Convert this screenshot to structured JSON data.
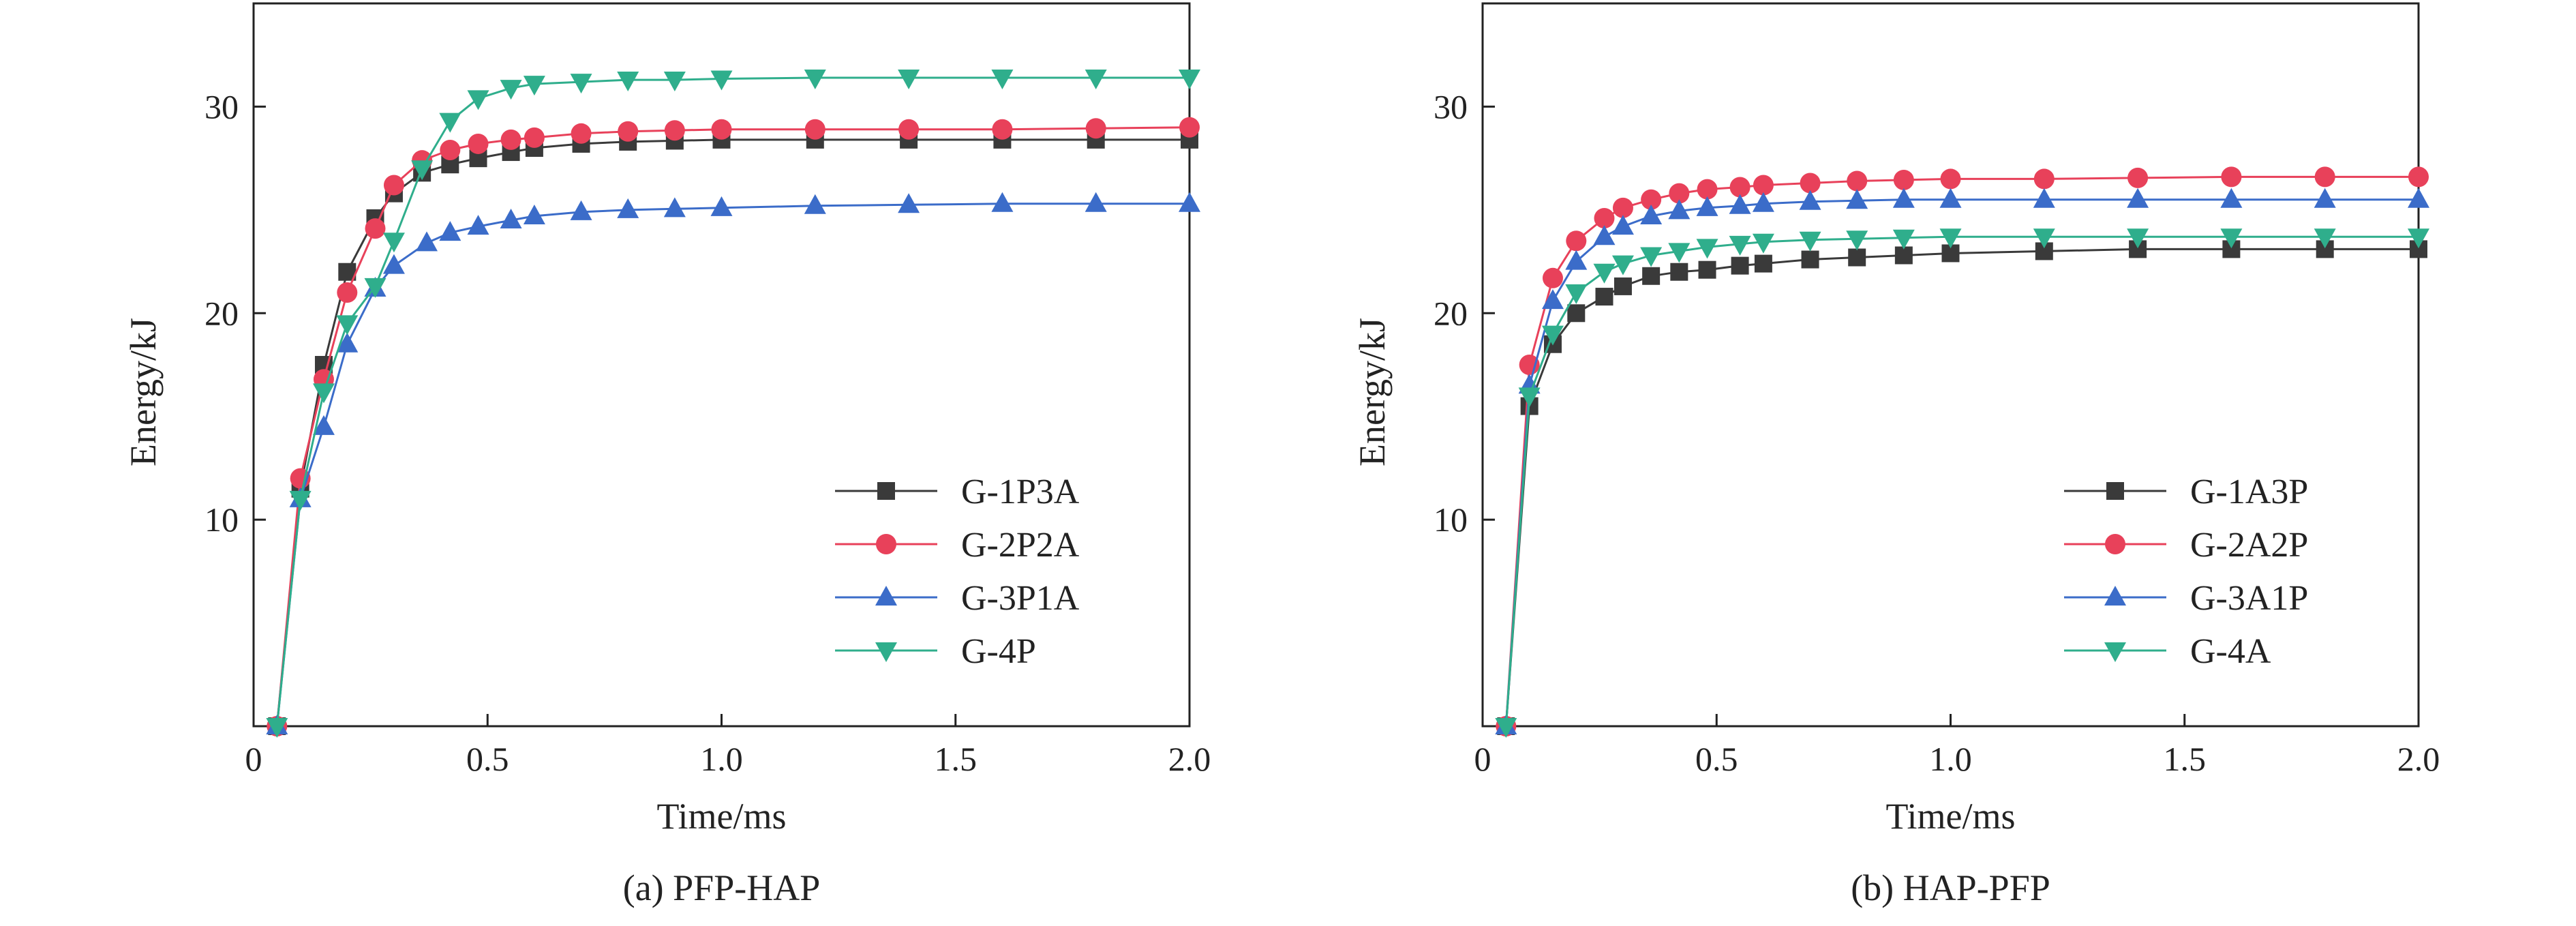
{
  "chart_data": [
    {
      "type": "line",
      "caption": "(a) PFP-HAP",
      "xlabel": "Time/ms",
      "ylabel": "Energy/kJ",
      "xlim": [
        0,
        2.0
      ],
      "ylim": [
        0,
        35
      ],
      "x_ticks": [
        0,
        0.5,
        1.0,
        1.5,
        2.0
      ],
      "x_tick_labels": [
        "0",
        "0.5",
        "1.0",
        "1.5",
        "2.0"
      ],
      "y_ticks": [
        10,
        20,
        30
      ],
      "y_tick_labels": [
        "10",
        "20",
        "30"
      ],
      "grid": false,
      "legend_position": "bottom-right",
      "series": [
        {
          "name": "G-1P3A",
          "color": "#3a3a3a",
          "marker": "square",
          "x": [
            0.05,
            0.1,
            0.15,
            0.2,
            0.26,
            0.3,
            0.36,
            0.42,
            0.48,
            0.55,
            0.6,
            0.7,
            0.8,
            0.9,
            1.0,
            1.2,
            1.4,
            1.6,
            1.8,
            2.0
          ],
          "y": [
            0,
            11.5,
            17.5,
            22.0,
            24.6,
            25.8,
            26.8,
            27.2,
            27.5,
            27.8,
            28.0,
            28.2,
            28.3,
            28.35,
            28.4,
            28.4,
            28.4,
            28.4,
            28.4,
            28.4
          ]
        },
        {
          "name": "G-2P2A",
          "color": "#e8415a",
          "marker": "circle",
          "x": [
            0.05,
            0.1,
            0.15,
            0.2,
            0.26,
            0.3,
            0.36,
            0.42,
            0.48,
            0.55,
            0.6,
            0.7,
            0.8,
            0.9,
            1.0,
            1.2,
            1.4,
            1.6,
            1.8,
            2.0
          ],
          "y": [
            0,
            12.0,
            16.8,
            21.0,
            24.1,
            26.2,
            27.4,
            27.9,
            28.2,
            28.4,
            28.5,
            28.7,
            28.8,
            28.85,
            28.9,
            28.9,
            28.9,
            28.9,
            28.95,
            29.0
          ]
        },
        {
          "name": "G-3P1A",
          "color": "#3b6cc9",
          "marker": "triangle-up",
          "x": [
            0.05,
            0.1,
            0.15,
            0.2,
            0.26,
            0.3,
            0.37,
            0.42,
            0.48,
            0.55,
            0.6,
            0.7,
            0.8,
            0.9,
            1.0,
            1.2,
            1.4,
            1.6,
            1.8,
            2.0
          ],
          "y": [
            0,
            11.0,
            14.5,
            18.5,
            21.2,
            22.3,
            23.4,
            23.9,
            24.2,
            24.5,
            24.7,
            24.9,
            25.0,
            25.05,
            25.1,
            25.2,
            25.25,
            25.3,
            25.3,
            25.3
          ]
        },
        {
          "name": "G-4P",
          "color": "#2fae8c",
          "marker": "triangle-down",
          "x": [
            0.05,
            0.1,
            0.15,
            0.2,
            0.26,
            0.3,
            0.36,
            0.42,
            0.48,
            0.55,
            0.6,
            0.7,
            0.8,
            0.9,
            1.0,
            1.2,
            1.4,
            1.6,
            1.8,
            2.0
          ],
          "y": [
            0,
            11.0,
            16.2,
            19.5,
            21.3,
            23.5,
            27.0,
            29.3,
            30.4,
            30.9,
            31.1,
            31.2,
            31.3,
            31.3,
            31.35,
            31.4,
            31.4,
            31.4,
            31.4,
            31.4
          ]
        }
      ]
    },
    {
      "type": "line",
      "caption": "(b) HAP-PFP",
      "xlabel": "Time/ms",
      "ylabel": "Energy/kJ",
      "xlim": [
        0,
        2.0
      ],
      "ylim": [
        0,
        35
      ],
      "x_ticks": [
        0,
        0.5,
        1.0,
        1.5,
        2.0
      ],
      "x_tick_labels": [
        "0",
        "0.5",
        "1.0",
        "1.5",
        "2.0"
      ],
      "y_ticks": [
        10,
        20,
        30
      ],
      "y_tick_labels": [
        "10",
        "20",
        "30"
      ],
      "grid": false,
      "legend_position": "bottom-right",
      "series": [
        {
          "name": "G-1A3P",
          "color": "#3a3a3a",
          "marker": "square",
          "x": [
            0.05,
            0.1,
            0.15,
            0.2,
            0.26,
            0.3,
            0.36,
            0.42,
            0.48,
            0.55,
            0.6,
            0.7,
            0.8,
            0.9,
            1.0,
            1.2,
            1.4,
            1.6,
            1.8,
            2.0
          ],
          "y": [
            0,
            15.5,
            18.5,
            20.0,
            20.8,
            21.3,
            21.8,
            22.0,
            22.1,
            22.3,
            22.4,
            22.6,
            22.7,
            22.8,
            22.9,
            23.0,
            23.1,
            23.1,
            23.1,
            23.1
          ]
        },
        {
          "name": "G-2A2P",
          "color": "#e8415a",
          "marker": "circle",
          "x": [
            0.05,
            0.1,
            0.15,
            0.2,
            0.26,
            0.3,
            0.36,
            0.42,
            0.48,
            0.55,
            0.6,
            0.7,
            0.8,
            0.9,
            1.0,
            1.2,
            1.4,
            1.6,
            1.8,
            2.0
          ],
          "y": [
            0,
            17.5,
            21.7,
            23.5,
            24.6,
            25.1,
            25.5,
            25.8,
            26.0,
            26.1,
            26.2,
            26.3,
            26.4,
            26.45,
            26.5,
            26.5,
            26.55,
            26.6,
            26.6,
            26.6
          ]
        },
        {
          "name": "G-3A1P",
          "color": "#3b6cc9",
          "marker": "triangle-up",
          "x": [
            0.05,
            0.1,
            0.15,
            0.2,
            0.26,
            0.3,
            0.36,
            0.42,
            0.48,
            0.55,
            0.6,
            0.7,
            0.8,
            0.9,
            1.0,
            1.2,
            1.4,
            1.6,
            1.8,
            2.0
          ],
          "y": [
            0,
            16.5,
            20.6,
            22.5,
            23.7,
            24.2,
            24.7,
            24.95,
            25.1,
            25.2,
            25.3,
            25.4,
            25.45,
            25.5,
            25.5,
            25.5,
            25.5,
            25.5,
            25.5,
            25.5
          ]
        },
        {
          "name": "G-4A",
          "color": "#2fae8c",
          "marker": "triangle-down",
          "x": [
            0.05,
            0.1,
            0.15,
            0.2,
            0.26,
            0.3,
            0.36,
            0.42,
            0.48,
            0.55,
            0.6,
            0.7,
            0.8,
            0.9,
            1.0,
            1.2,
            1.4,
            1.6,
            1.8,
            2.0
          ],
          "y": [
            0,
            16.0,
            19.0,
            21.0,
            22.0,
            22.4,
            22.8,
            23.0,
            23.2,
            23.35,
            23.45,
            23.55,
            23.6,
            23.65,
            23.7,
            23.7,
            23.7,
            23.7,
            23.7,
            23.7
          ]
        }
      ]
    }
  ]
}
